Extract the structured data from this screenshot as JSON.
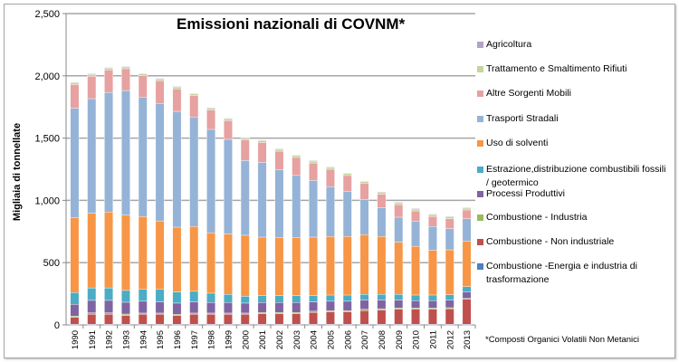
{
  "chart_data": {
    "type": "bar",
    "stacked": true,
    "title": "Emissioni nazionali di COVNM*",
    "xlabel": "",
    "ylabel": "Migliaia di tonnellate",
    "ylim": [
      0,
      2500
    ],
    "yticks": [
      0,
      500,
      1000,
      1500,
      2000,
      2500
    ],
    "ytick_labels": [
      "0",
      "500",
      "1,000",
      "1,500",
      "2,000",
      "2,500"
    ],
    "grid": true,
    "legend_position": "right",
    "categories": [
      "1990",
      "1991",
      "1992",
      "1993",
      "1994",
      "1995",
      "1996",
      "1997",
      "1998",
      "1999",
      "2000",
      "2001",
      "2002",
      "2003",
      "2004",
      "2005",
      "2006",
      "2007",
      "2008",
      "2009",
      "2010",
      "2011",
      "2012",
      "2013"
    ],
    "series": [
      {
        "name": "Combustione -Energia e industria di trasformazione",
        "color": "#4f81bd",
        "values": [
          5,
          5,
          5,
          5,
          5,
          5,
          5,
          5,
          5,
          5,
          5,
          5,
          5,
          5,
          5,
          5,
          5,
          5,
          5,
          5,
          5,
          5,
          5,
          5
        ]
      },
      {
        "name": "Combustione - Non industriale",
        "color": "#c0504d",
        "values": [
          55,
          80,
          80,
          70,
          80,
          80,
          70,
          80,
          80,
          80,
          80,
          85,
          85,
          85,
          95,
          100,
          100,
          110,
          115,
          120,
          120,
          120,
          125,
          200
        ]
      },
      {
        "name": "Combustione - Industria",
        "color": "#9bbb59",
        "values": [
          10,
          12,
          12,
          12,
          10,
          10,
          10,
          10,
          10,
          10,
          10,
          10,
          10,
          10,
          10,
          10,
          10,
          10,
          10,
          10,
          10,
          10,
          8,
          8
        ]
      },
      {
        "name": "Processi Produttivi",
        "color": "#8064a2",
        "values": [
          95,
          100,
          100,
          95,
          95,
          90,
          90,
          90,
          85,
          85,
          80,
          80,
          80,
          80,
          75,
          75,
          75,
          75,
          70,
          65,
          60,
          60,
          60,
          50
        ]
      },
      {
        "name": "Estrazione,distribuzione combustibili fossili / geotermico",
        "color": "#4bacc6",
        "values": [
          95,
          100,
          100,
          95,
          95,
          100,
          90,
          85,
          75,
          65,
          55,
          55,
          55,
          55,
          50,
          50,
          50,
          45,
          45,
          45,
          45,
          45,
          45,
          45
        ]
      },
      {
        "name": "Uso di solventi",
        "color": "#f79646",
        "values": [
          600,
          600,
          610,
          605,
          585,
          550,
          520,
          520,
          485,
          485,
          490,
          470,
          465,
          465,
          470,
          470,
          470,
          480,
          465,
          420,
          390,
          360,
          360,
          365
        ]
      },
      {
        "name": "Trasporti Stradali",
        "color": "#95b3d7",
        "values": [
          880,
          920,
          960,
          1000,
          960,
          940,
          930,
          880,
          830,
          760,
          600,
          600,
          545,
          500,
          455,
          400,
          360,
          280,
          230,
          200,
          200,
          190,
          170,
          180
        ]
      },
      {
        "name": "Altre Sorgenti Mobili",
        "color": "#e6a1a0",
        "values": [
          190,
          180,
          180,
          175,
          170,
          185,
          180,
          170,
          155,
          150,
          165,
          160,
          150,
          145,
          140,
          140,
          130,
          130,
          110,
          100,
          85,
          80,
          80,
          70
        ]
      },
      {
        "name": "Trattamento e Smaltimento Rifiuti",
        "color": "#c3d69b",
        "values": [
          15,
          15,
          15,
          15,
          15,
          15,
          15,
          15,
          15,
          15,
          15,
          15,
          15,
          15,
          15,
          15,
          15,
          15,
          15,
          15,
          15,
          15,
          15,
          15
        ]
      },
      {
        "name": "Agricoltura",
        "color": "#b3a2c7",
        "values": [
          5,
          5,
          5,
          5,
          5,
          5,
          5,
          5,
          5,
          5,
          5,
          5,
          5,
          5,
          5,
          5,
          5,
          5,
          5,
          5,
          5,
          5,
          5,
          5
        ]
      }
    ],
    "legend_order": [
      "Agricoltura",
      "Trattamento e Smaltimento Rifiuti",
      "Altre Sorgenti Mobili",
      "Trasporti Stradali",
      "Uso di solventi",
      "Estrazione,distribuzione combustibili fossili / geotermico",
      "Processi Produttivi",
      "Combustione - Industria",
      "Combustione - Non industriale",
      "Combustione -Energia e industria di trasformazione"
    ],
    "footnote": "*Composti Organici Volatili Non Metanici"
  }
}
